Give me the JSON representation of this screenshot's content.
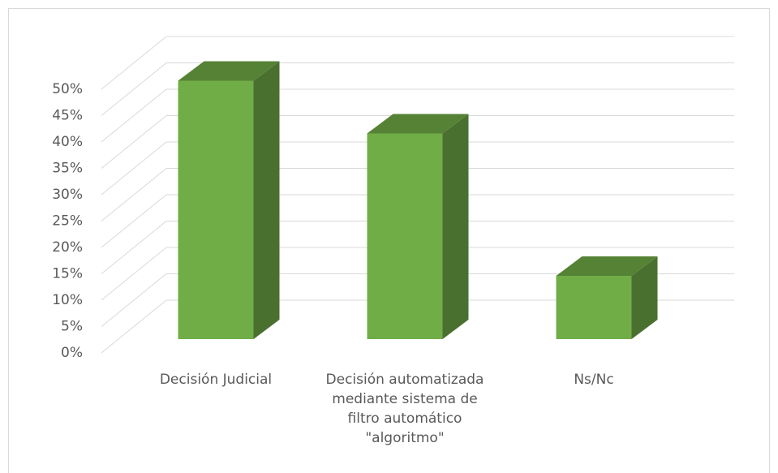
{
  "chart_data": {
    "type": "bar3d",
    "categories": [
      "Decisión Judicial",
      "Decisión automatizada mediante sistema de filtro automático \"algoritmo\"",
      "Ns/Nc"
    ],
    "values": [
      49,
      39,
      12
    ],
    "color": "#70ad47",
    "ylim": [
      0,
      50
    ],
    "yticks": [
      {
        "value": 0,
        "label": "0%"
      },
      {
        "value": 5,
        "label": "5%"
      },
      {
        "value": 10,
        "label": "10%"
      },
      {
        "value": 15,
        "label": "15%"
      },
      {
        "value": 20,
        "label": "20%"
      },
      {
        "value": 25,
        "label": "25%"
      },
      {
        "value": 30,
        "label": "30%"
      },
      {
        "value": 35,
        "label": "35%"
      },
      {
        "value": 40,
        "label": "40%"
      },
      {
        "value": 45,
        "label": "45%"
      },
      {
        "value": 50,
        "label": "50%"
      }
    ],
    "grid": true
  }
}
